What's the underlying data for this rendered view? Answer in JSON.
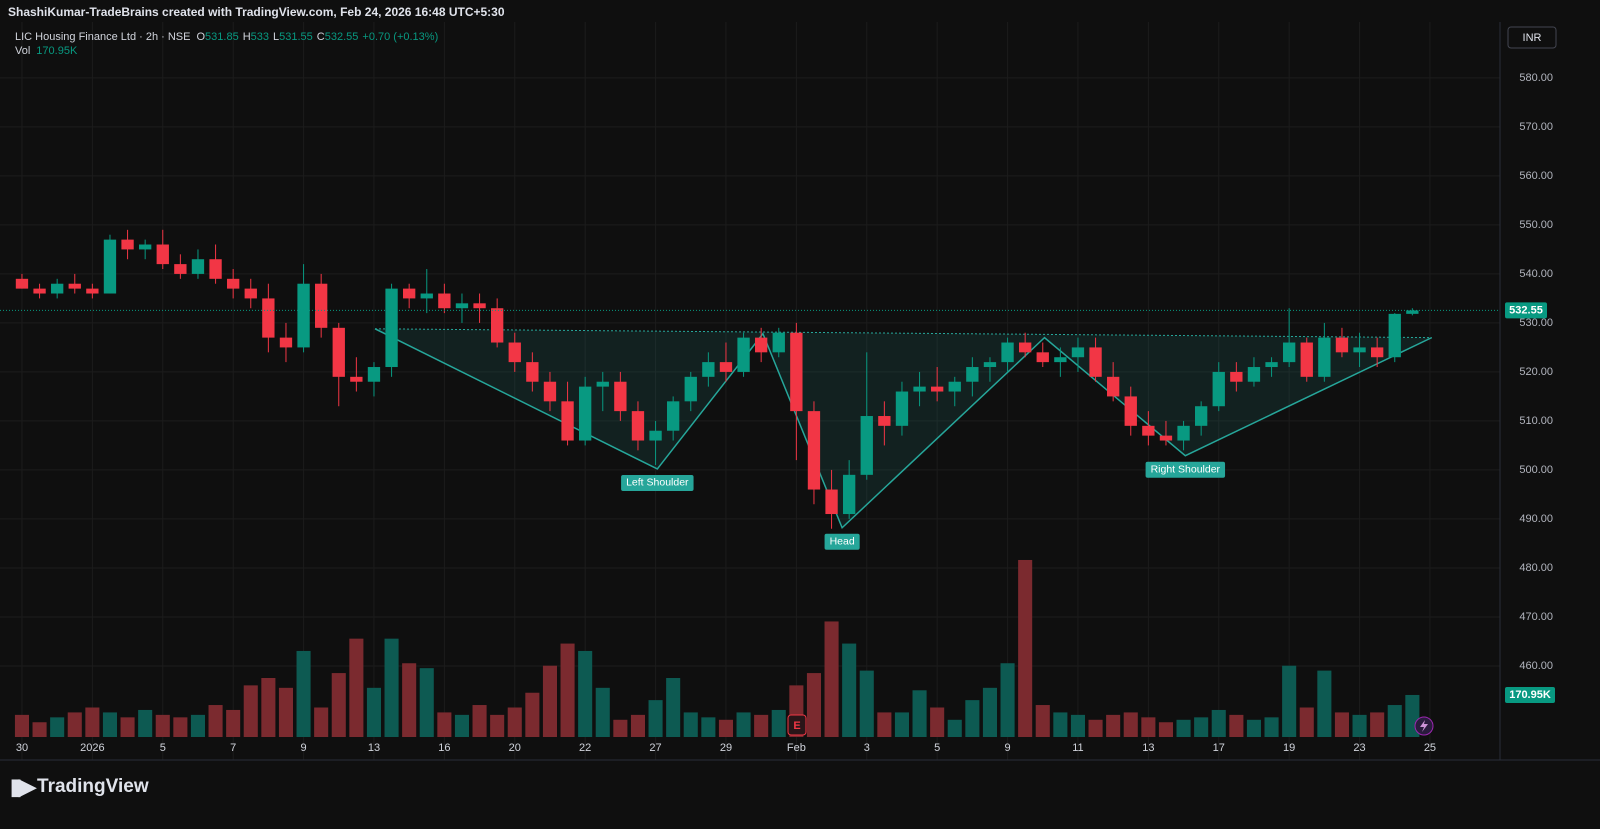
{
  "header": {
    "attribution": "ShashiKumar-TradeBrains created with TradingView.com, Feb 24, 2026 16:48 UTC+5:30",
    "brand": "TradingView"
  },
  "chart_data": {
    "type": "candlestick",
    "title": "LIC Housing Finance Ltd · 2h · NSE",
    "currency": "INR",
    "ohlc_keys": [
      "O",
      "H",
      "L",
      "C"
    ],
    "change": "+0.70 (+0.13%)",
    "volume_title": "Vol",
    "last_volume_label": "170.95K",
    "up_color": "#089981",
    "down_color": "#f23645",
    "up_volume_color": "#0d5a52",
    "down_volume_color": "#7b2a2f",
    "grid": true,
    "open": [
      539,
      537,
      536,
      538,
      537,
      536,
      547,
      545,
      546,
      542,
      540,
      543,
      539,
      537,
      535,
      527,
      525,
      538,
      529,
      519,
      518,
      521,
      537,
      535,
      536,
      533,
      534,
      533,
      526,
      522,
      518,
      514,
      506,
      517,
      518,
      512,
      506,
      508,
      514,
      519,
      522,
      520,
      527,
      524,
      528,
      512,
      496,
      491,
      499,
      511,
      509,
      516,
      517,
      516,
      518,
      521,
      522,
      526,
      524,
      522,
      523,
      525,
      519,
      515,
      509,
      507,
      506,
      509,
      513,
      520,
      518,
      521,
      522,
      526,
      519,
      527,
      524,
      525,
      523,
      531.85
    ],
    "high": [
      540,
      538,
      539,
      540,
      538,
      548,
      549,
      547,
      549,
      544,
      545,
      546,
      541,
      539,
      538,
      530,
      542,
      540,
      530,
      523,
      522,
      538,
      538,
      541,
      538,
      536,
      536,
      535,
      528,
      524,
      520,
      518,
      519,
      520,
      520,
      514,
      510,
      515,
      520,
      524,
      526,
      528,
      529,
      529,
      530,
      514,
      500,
      502,
      524,
      514,
      518,
      520,
      521,
      519,
      523,
      523,
      527,
      528,
      526,
      525,
      527,
      527,
      522,
      517,
      512,
      510,
      510,
      514,
      522,
      522,
      523,
      523,
      533,
      527,
      530,
      529,
      528,
      527,
      532,
      533
    ],
    "low": [
      537,
      535,
      535,
      536,
      535,
      536,
      543,
      543,
      541,
      539,
      539,
      538,
      535,
      533,
      524,
      522,
      524,
      527,
      513,
      516,
      515,
      519,
      533,
      532,
      532,
      530,
      530,
      525,
      520,
      516,
      512,
      505,
      505,
      512,
      510,
      504,
      501,
      506,
      512,
      517,
      518,
      519,
      522,
      523,
      502,
      493,
      488,
      490,
      498,
      505,
      507,
      513,
      514,
      513,
      515,
      518,
      520,
      523,
      521,
      519,
      520,
      518,
      514,
      507,
      505,
      505,
      504,
      507,
      512,
      516,
      517,
      519,
      521,
      518,
      518,
      523,
      521,
      521,
      522,
      531.55
    ],
    "close": [
      537,
      536,
      538,
      537,
      536,
      547,
      545,
      546,
      542,
      540,
      543,
      539,
      537,
      535,
      527,
      525,
      538,
      529,
      519,
      518,
      521,
      537,
      535,
      536,
      533,
      534,
      533,
      526,
      522,
      518,
      514,
      506,
      517,
      518,
      512,
      506,
      508,
      514,
      519,
      522,
      520,
      527,
      524,
      528,
      512,
      496,
      491,
      499,
      511,
      509,
      516,
      517,
      516,
      518,
      521,
      522,
      526,
      524,
      522,
      523,
      525,
      519,
      515,
      509,
      507,
      506,
      509,
      513,
      520,
      518,
      521,
      522,
      526,
      519,
      527,
      524,
      525,
      523,
      531.85,
      532.55
    ],
    "volume": [
      90000,
      60000,
      80000,
      100000,
      120000,
      100000,
      80000,
      110000,
      90000,
      80000,
      90000,
      130000,
      110000,
      210000,
      240000,
      200000,
      350000,
      120000,
      260000,
      400000,
      200000,
      400000,
      300000,
      280000,
      100000,
      90000,
      130000,
      90000,
      120000,
      180000,
      290000,
      380000,
      350000,
      200000,
      70000,
      90000,
      150000,
      240000,
      100000,
      80000,
      70000,
      100000,
      90000,
      110000,
      210000,
      260000,
      470000,
      380000,
      270000,
      100000,
      100000,
      190000,
      120000,
      70000,
      150000,
      200000,
      300000,
      720000,
      130000,
      100000,
      90000,
      70000,
      90000,
      100000,
      80000,
      60000,
      70000,
      80000,
      110000,
      90000,
      70000,
      80000,
      290000,
      120000,
      270000,
      100000,
      90000,
      100000,
      130000,
      170950
    ],
    "xlim": [
      -0.68,
      83.98
    ],
    "xticks": [
      {
        "value": 0,
        "label": "30"
      },
      {
        "value": 4,
        "label": "2026"
      },
      {
        "value": 8,
        "label": "5"
      },
      {
        "value": 12,
        "label": "7"
      },
      {
        "value": 16,
        "label": "9"
      },
      {
        "value": 20,
        "label": "13"
      },
      {
        "value": 24,
        "label": "16"
      },
      {
        "value": 28,
        "label": "20"
      },
      {
        "value": 32,
        "label": "22"
      },
      {
        "value": 36,
        "label": "27"
      },
      {
        "value": 40,
        "label": "29"
      },
      {
        "value": 44,
        "label": "Feb"
      },
      {
        "value": 48,
        "label": "3"
      },
      {
        "value": 52,
        "label": "5"
      },
      {
        "value": 56,
        "label": "9"
      },
      {
        "value": 60,
        "label": "11"
      },
      {
        "value": 64,
        "label": "13"
      },
      {
        "value": 68,
        "label": "17"
      },
      {
        "value": 72,
        "label": "19"
      },
      {
        "value": 76,
        "label": "23"
      },
      {
        "value": 80,
        "label": "25"
      }
    ],
    "ylim": [
      445.5,
      591
    ],
    "yticks": [
      {
        "value": 460,
        "label": "460.00"
      },
      {
        "value": 470,
        "label": "470.00"
      },
      {
        "value": 480,
        "label": "480.00"
      },
      {
        "value": 490,
        "label": "490.00"
      },
      {
        "value": 500,
        "label": "500.00"
      },
      {
        "value": 510,
        "label": "510.00"
      },
      {
        "value": 520,
        "label": "520.00"
      },
      {
        "value": 530,
        "label": "530.00"
      },
      {
        "value": 540,
        "label": "540.00"
      },
      {
        "value": 550,
        "label": "550.00"
      },
      {
        "value": 560,
        "label": "560.00"
      },
      {
        "value": 570,
        "label": "570.00"
      },
      {
        "value": 580,
        "label": "580.00"
      }
    ],
    "volume_ylim": [
      0,
      2900000
    ],
    "pattern": {
      "color": "#26a69a",
      "points": [
        {
          "x": 20.06,
          "y": 528.8
        },
        {
          "x": 36.1,
          "y": 500.2
        },
        {
          "x": 42.1,
          "y": 527.8
        },
        {
          "x": 46.6,
          "y": 488.2
        },
        {
          "x": 58.1,
          "y": 527
        },
        {
          "x": 66.1,
          "y": 502.9
        },
        {
          "x": 80.1,
          "y": 527
        }
      ],
      "labels": [
        {
          "text": "Left Shoulder",
          "x": 36.1,
          "y": 500.2
        },
        {
          "text": "Head",
          "x": 46.6,
          "y": 488.2
        },
        {
          "text": "Right Shoulder",
          "x": 66.1,
          "y": 502.9
        }
      ]
    }
  }
}
